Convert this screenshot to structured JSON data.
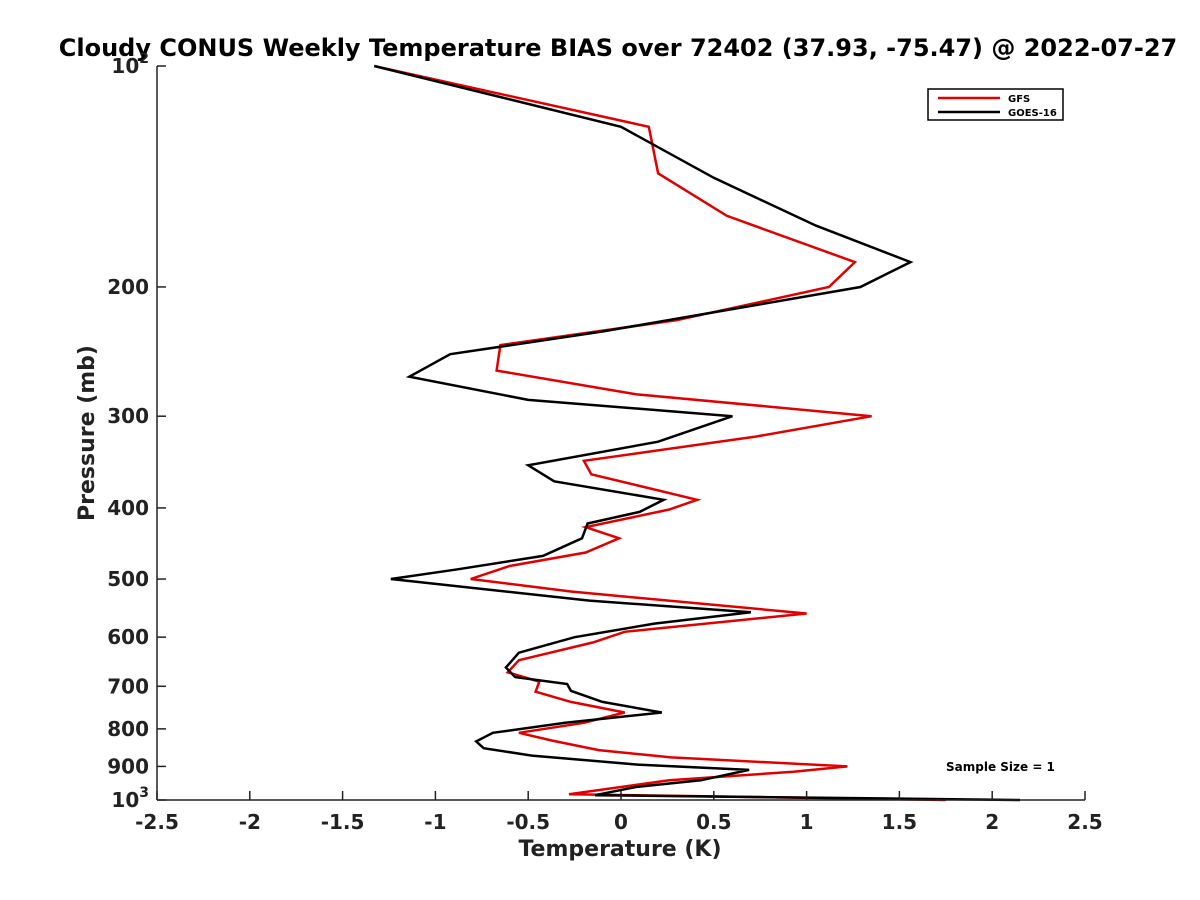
{
  "chart_data": {
    "type": "line",
    "title": "Cloudy CONUS Weekly Temperature BIAS over 72402 (37.93, -75.47) @ 2022-07-27",
    "xlabel": "Temperature (K)",
    "ylabel": "Pressure (mb)",
    "xlim": [
      -2.5,
      2.5
    ],
    "ylim": [
      100,
      1000
    ],
    "y_scale": "log",
    "y_reversed": true,
    "grid": false,
    "legend_position": "top-right",
    "x_ticks": [
      "-2.5",
      "-2",
      "-1.5",
      "-1",
      "-0.5",
      "0",
      "0.5",
      "1",
      "1.5",
      "2",
      "2.5"
    ],
    "x_tick_values": [
      -2.5,
      -2,
      -1.5,
      -1,
      -0.5,
      0,
      0.5,
      1,
      1.5,
      2,
      2.5
    ],
    "y_ticks": [
      {
        "value": 100,
        "base": "10",
        "exp": "2"
      },
      {
        "value": 200,
        "label": "200"
      },
      {
        "value": 300,
        "label": "300"
      },
      {
        "value": 400,
        "label": "400"
      },
      {
        "value": 500,
        "label": "500"
      },
      {
        "value": 600,
        "label": "600"
      },
      {
        "value": 700,
        "label": "700"
      },
      {
        "value": 800,
        "label": "800"
      },
      {
        "value": 900,
        "label": "900"
      },
      {
        "value": 1000,
        "base": "10",
        "exp": "3"
      }
    ],
    "annotation": "Sample Size = 1",
    "series": [
      {
        "name": "GFS",
        "color": "#e00000",
        "points": [
          {
            "x": -1.33,
            "p": 100
          },
          {
            "x": 0.15,
            "p": 121
          },
          {
            "x": 0.2,
            "p": 140
          },
          {
            "x": 0.57,
            "p": 160
          },
          {
            "x": 1.26,
            "p": 185
          },
          {
            "x": 1.12,
            "p": 200
          },
          {
            "x": 0.3,
            "p": 222
          },
          {
            "x": -0.65,
            "p": 240
          },
          {
            "x": -0.67,
            "p": 260
          },
          {
            "x": 0.08,
            "p": 280
          },
          {
            "x": 1.35,
            "p": 300
          },
          {
            "x": 0.72,
            "p": 320
          },
          {
            "x": -0.2,
            "p": 345
          },
          {
            "x": -0.16,
            "p": 360
          },
          {
            "x": 0.41,
            "p": 390
          },
          {
            "x": 0.26,
            "p": 402
          },
          {
            "x": -0.19,
            "p": 425
          },
          {
            "x": -0.01,
            "p": 440
          },
          {
            "x": -0.19,
            "p": 460
          },
          {
            "x": -0.6,
            "p": 480
          },
          {
            "x": -0.81,
            "p": 500
          },
          {
            "x": -0.27,
            "p": 520
          },
          {
            "x": 1.0,
            "p": 557
          },
          {
            "x": 0.02,
            "p": 590
          },
          {
            "x": -0.15,
            "p": 610
          },
          {
            "x": -0.55,
            "p": 645
          },
          {
            "x": -0.61,
            "p": 670
          },
          {
            "x": -0.44,
            "p": 690
          },
          {
            "x": -0.46,
            "p": 712
          },
          {
            "x": -0.27,
            "p": 735
          },
          {
            "x": 0.02,
            "p": 760
          },
          {
            "x": -0.2,
            "p": 785
          },
          {
            "x": -0.55,
            "p": 810
          },
          {
            "x": -0.37,
            "p": 830
          },
          {
            "x": -0.12,
            "p": 855
          },
          {
            "x": 0.27,
            "p": 875
          },
          {
            "x": 1.22,
            "p": 900
          },
          {
            "x": 0.93,
            "p": 915
          },
          {
            "x": 0.26,
            "p": 940
          },
          {
            "x": -0.28,
            "p": 982
          },
          {
            "x": 1.75,
            "p": 1000
          }
        ]
      },
      {
        "name": "GOES-16",
        "color": "#000000",
        "points": [
          {
            "x": -1.33,
            "p": 100
          },
          {
            "x": 0.0,
            "p": 121
          },
          {
            "x": 0.5,
            "p": 142
          },
          {
            "x": 1.05,
            "p": 165
          },
          {
            "x": 1.56,
            "p": 185
          },
          {
            "x": 1.29,
            "p": 200
          },
          {
            "x": -0.1,
            "p": 230
          },
          {
            "x": -0.92,
            "p": 247
          },
          {
            "x": -1.14,
            "p": 265
          },
          {
            "x": -0.5,
            "p": 285
          },
          {
            "x": 0.6,
            "p": 300
          },
          {
            "x": 0.2,
            "p": 325
          },
          {
            "x": -0.5,
            "p": 350
          },
          {
            "x": -0.36,
            "p": 368
          },
          {
            "x": 0.23,
            "p": 390
          },
          {
            "x": 0.1,
            "p": 405
          },
          {
            "x": -0.18,
            "p": 420
          },
          {
            "x": -0.21,
            "p": 440
          },
          {
            "x": -0.42,
            "p": 465
          },
          {
            "x": -0.88,
            "p": 485
          },
          {
            "x": -1.24,
            "p": 500
          },
          {
            "x": -0.17,
            "p": 535
          },
          {
            "x": 0.7,
            "p": 555
          },
          {
            "x": 0.18,
            "p": 575
          },
          {
            "x": -0.25,
            "p": 600
          },
          {
            "x": -0.55,
            "p": 630
          },
          {
            "x": -0.62,
            "p": 660
          },
          {
            "x": -0.57,
            "p": 680
          },
          {
            "x": -0.29,
            "p": 695
          },
          {
            "x": -0.27,
            "p": 710
          },
          {
            "x": -0.1,
            "p": 735
          },
          {
            "x": 0.22,
            "p": 760
          },
          {
            "x": -0.3,
            "p": 785
          },
          {
            "x": -0.69,
            "p": 810
          },
          {
            "x": -0.78,
            "p": 832
          },
          {
            "x": -0.74,
            "p": 850
          },
          {
            "x": -0.48,
            "p": 870
          },
          {
            "x": 0.09,
            "p": 895
          },
          {
            "x": 0.69,
            "p": 910
          },
          {
            "x": 0.43,
            "p": 940
          },
          {
            "x": 0.08,
            "p": 960
          },
          {
            "x": -0.14,
            "p": 985
          },
          {
            "x": 2.15,
            "p": 1000
          }
        ]
      }
    ]
  }
}
